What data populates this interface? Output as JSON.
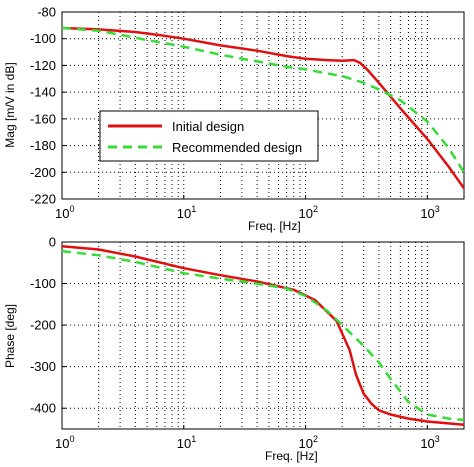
{
  "chart_data": [
    {
      "type": "line",
      "xlabel": "Freq. [Hz]",
      "ylabel": "Mag [m/V in dB]",
      "xscale": "log",
      "xlim": [
        1,
        2000
      ],
      "ylim": [
        -220,
        -80
      ],
      "grid": true,
      "x_ticks": [
        1,
        10,
        100,
        1000
      ],
      "y_ticks": [
        -220,
        -200,
        -180,
        -160,
        -140,
        -120,
        -100,
        -80
      ],
      "legend_position": "center-left",
      "series": [
        {
          "name": "Initial design",
          "color": "#e01010",
          "style": "solid",
          "x": [
            1,
            2,
            4,
            6,
            10,
            20,
            40,
            70,
            100,
            150,
            200,
            250,
            280,
            320,
            400,
            600,
            1000,
            1500,
            2000
          ],
          "y": [
            -92,
            -93,
            -95,
            -97,
            -100,
            -105,
            -109,
            -113,
            -115,
            -116,
            -116.5,
            -116,
            -118,
            -123,
            -133,
            -152,
            -175,
            -196,
            -212
          ]
        },
        {
          "name": "Recommended design",
          "color": "#33dd33",
          "style": "dashed",
          "x": [
            1,
            2,
            3,
            5,
            10,
            20,
            40,
            70,
            100,
            150,
            200,
            300,
            400,
            600,
            1000,
            1500,
            2000
          ],
          "y": [
            -92,
            -94,
            -97,
            -101,
            -106,
            -112,
            -117,
            -121,
            -123,
            -126,
            -128,
            -133,
            -138,
            -146,
            -162,
            -182,
            -200
          ]
        }
      ]
    },
    {
      "type": "line",
      "xlabel": "Freq. [Hz]",
      "ylabel": "Phase [deg]",
      "xscale": "log",
      "xlim": [
        1,
        2000
      ],
      "ylim": [
        -450,
        0
      ],
      "grid": true,
      "x_ticks": [
        1,
        10,
        100,
        1000
      ],
      "y_ticks": [
        -400,
        -300,
        -200,
        -100,
        0
      ],
      "series": [
        {
          "name": "Initial design",
          "color": "#e01010",
          "style": "solid",
          "x": [
            1,
            2,
            4,
            10,
            20,
            40,
            80,
            120,
            180,
            230,
            260,
            300,
            350,
            400,
            500,
            700,
            1000,
            2000
          ],
          "y": [
            -10,
            -18,
            -35,
            -63,
            -80,
            -95,
            -115,
            -140,
            -190,
            -260,
            -320,
            -365,
            -390,
            -405,
            -415,
            -425,
            -432,
            -440
          ]
        },
        {
          "name": "Recommended design",
          "color": "#33dd33",
          "style": "dashed",
          "x": [
            1,
            2,
            4,
            10,
            20,
            40,
            70,
            100,
            150,
            200,
            300,
            400,
            500,
            700,
            1000,
            1500,
            2000
          ],
          "y": [
            -22,
            -32,
            -48,
            -75,
            -88,
            -100,
            -112,
            -130,
            -165,
            -200,
            -250,
            -290,
            -330,
            -385,
            -415,
            -425,
            -428
          ]
        }
      ]
    }
  ]
}
